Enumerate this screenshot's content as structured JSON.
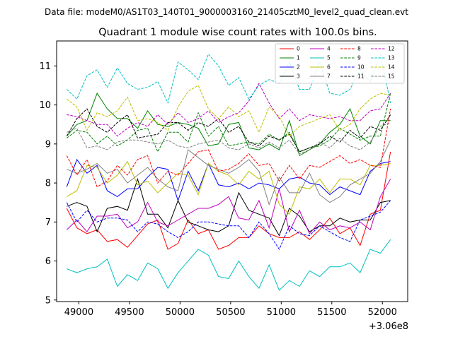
{
  "suptitle": "Data file: modeM0/AS1T03_140T01_9000003160_21405cztM0_level2_quad_clean.evt",
  "chart_data": {
    "type": "line",
    "title": "Quadrant 1 module wise count rates with 100.0s bins.",
    "xlabel": "",
    "ylabel": "",
    "x_offset_label": "+3.06e8",
    "xlim": [
      48780,
      52250
    ],
    "ylim": [
      4.96,
      11.64
    ],
    "xticks": [
      49000,
      49500,
      50000,
      50500,
      51000,
      51500,
      52000
    ],
    "xtick_labels": [
      "49000",
      "49500",
      "50000",
      "50500",
      "51000",
      "51500",
      "52000"
    ],
    "yticks": [
      5,
      6,
      7,
      8,
      9,
      10,
      11
    ],
    "ytick_labels": [
      "5",
      "6",
      "7",
      "8",
      "9",
      "10",
      "11"
    ],
    "x": [
      48880,
      48980,
      49080,
      49180,
      49280,
      49380,
      49480,
      49580,
      49680,
      49780,
      49880,
      49980,
      50080,
      50180,
      50280,
      50380,
      50480,
      50580,
      50680,
      50780,
      50880,
      50980,
      51080,
      51180,
      51280,
      51380,
      51480,
      51580,
      51680,
      51780,
      51880,
      51980,
      52080
    ],
    "legend_loc": "upper right",
    "series": [
      {
        "name": "0",
        "color": "#ff0000",
        "dash": "solid",
        "values": [
          7.35,
          6.85,
          6.7,
          6.8,
          6.5,
          6.55,
          6.35,
          6.65,
          6.95,
          7.05,
          6.3,
          6.45,
          7.05,
          6.7,
          6.8,
          6.3,
          6.4,
          6.6,
          6.6,
          6.9,
          6.7,
          6.6,
          6.6,
          6.75,
          6.55,
          6.8,
          7.1,
          6.7,
          6.85,
          6.4,
          7.2,
          7.3,
          8.8
        ]
      },
      {
        "name": "1",
        "color": "#008000",
        "dash": "solid",
        "values": [
          9.2,
          9.5,
          9.6,
          10.3,
          9.9,
          9.65,
          9.65,
          9.4,
          9.85,
          9.5,
          9.45,
          9.55,
          9.5,
          9.4,
          8.95,
          9.0,
          9.5,
          9.55,
          8.9,
          8.85,
          9.0,
          8.85,
          9.6,
          8.7,
          8.85,
          9.0,
          9.3,
          9.5,
          9.9,
          9.2,
          9.0,
          9.6,
          9.6
        ]
      },
      {
        "name": "2",
        "color": "#0000ff",
        "dash": "solid",
        "values": [
          7.9,
          8.6,
          8.25,
          8.45,
          7.8,
          7.65,
          7.85,
          7.85,
          8.15,
          8.4,
          8.35,
          7.55,
          8.3,
          7.8,
          8.5,
          7.95,
          7.9,
          8.0,
          7.85,
          8.0,
          7.95,
          7.85,
          8.1,
          8.15,
          8.0,
          7.95,
          7.7,
          7.9,
          7.8,
          7.7,
          8.3,
          8.5,
          8.55
        ]
      },
      {
        "name": "3",
        "color": "#000000",
        "dash": "solid",
        "values": [
          7.4,
          7.5,
          7.4,
          6.75,
          7.35,
          7.4,
          7.3,
          8.1,
          7.2,
          7.2,
          6.85,
          7.55,
          7.0,
          6.9,
          6.8,
          6.75,
          6.9,
          7.75,
          7.3,
          7.2,
          7.1,
          6.65,
          7.35,
          7.15,
          6.75,
          6.9,
          6.9,
          7.1,
          7.0,
          7.05,
          7.05,
          7.5,
          7.55
        ]
      },
      {
        "name": "4",
        "color": "#bf00bf",
        "dash": "solid",
        "values": [
          6.8,
          7.05,
          6.75,
          7.15,
          7.15,
          7.2,
          6.85,
          7.0,
          7.5,
          7.0,
          6.9,
          7.05,
          7.2,
          7.35,
          7.35,
          7.45,
          7.65,
          7.1,
          7.05,
          7.55,
          6.85,
          7.85,
          6.75,
          7.3,
          6.7,
          7.0,
          6.8,
          6.9,
          6.85,
          7.0,
          6.8,
          7.65,
          8.1
        ]
      },
      {
        "name": "5",
        "color": "#00bfbf",
        "dash": "solid",
        "values": [
          5.8,
          5.7,
          5.8,
          5.85,
          6.05,
          5.35,
          5.65,
          5.5,
          5.95,
          5.8,
          5.3,
          5.7,
          6.0,
          6.3,
          6.15,
          5.6,
          5.55,
          6.0,
          5.6,
          5.3,
          5.9,
          5.25,
          5.5,
          5.35,
          5.75,
          5.6,
          5.85,
          5.85,
          5.95,
          5.7,
          6.3,
          6.2,
          6.55
        ]
      },
      {
        "name": "6",
        "color": "#bfbf00",
        "dash": "solid",
        "values": [
          7.65,
          7.8,
          8.45,
          8.4,
          8.0,
          8.2,
          8.55,
          7.95,
          8.05,
          7.75,
          8.0,
          8.25,
          8.2,
          7.7,
          8.5,
          8.3,
          8.2,
          7.95,
          8.3,
          8.1,
          8.3,
          7.45,
          7.2,
          7.9,
          7.85,
          8.1,
          7.75,
          8.1,
          8.1,
          7.95,
          8.45,
          8.45,
          8.5
        ]
      },
      {
        "name": "7",
        "color": "#808080",
        "dash": "solid",
        "values": [
          8.35,
          8.25,
          8.35,
          8.5,
          8.25,
          8.35,
          8.0,
          8.2,
          8.4,
          8.1,
          7.9,
          7.8,
          8.85,
          8.65,
          8.45,
          8.35,
          8.25,
          8.4,
          8.6,
          8.3,
          7.45,
          8.15,
          7.75,
          7.75,
          8.25,
          7.7,
          7.5,
          7.65,
          7.95,
          8.1,
          8.25,
          8.55,
          9.1
        ]
      },
      {
        "name": "8",
        "color": "#ff0000",
        "dash": "dash",
        "values": [
          8.7,
          8.2,
          8.6,
          7.9,
          8.05,
          8.45,
          8.2,
          8.6,
          8.7,
          8.0,
          8.3,
          8.2,
          8.5,
          8.8,
          8.85,
          8.3,
          8.35,
          8.5,
          8.75,
          8.45,
          8.5,
          8.05,
          8.45,
          8.1,
          8.45,
          8.4,
          8.55,
          8.7,
          8.5,
          8.6,
          8.45,
          8.4,
          9.9
        ]
      },
      {
        "name": "9",
        "color": "#008000",
        "dash": "dash",
        "values": [
          9.15,
          9.35,
          9.3,
          9.0,
          9.2,
          8.95,
          9.1,
          9.35,
          9.4,
          8.8,
          9.3,
          9.3,
          9.05,
          9.8,
          9.2,
          9.45,
          8.95,
          9.0,
          9.05,
          9.0,
          9.25,
          9.1,
          9.3,
          8.8,
          8.9,
          8.95,
          9.1,
          9.4,
          9.25,
          9.1,
          9.2,
          9.2,
          10.3
        ]
      },
      {
        "name": "10",
        "color": "#0000ff",
        "dash": "dash",
        "values": [
          7.5,
          7.0,
          7.3,
          7.0,
          7.1,
          7.1,
          7.05,
          6.75,
          7.0,
          6.95,
          6.75,
          6.6,
          6.75,
          7.0,
          7.0,
          6.95,
          6.9,
          6.9,
          6.6,
          7.0,
          6.7,
          6.3,
          6.9,
          6.7,
          6.65,
          6.9,
          6.75,
          6.6,
          6.5,
          7.05,
          7.15,
          7.25,
          7.55
        ]
      },
      {
        "name": "11",
        "color": "#000000",
        "dash": "dash",
        "values": [
          9.2,
          9.65,
          9.9,
          9.45,
          9.3,
          9.55,
          9.75,
          9.15,
          9.2,
          9.25,
          9.55,
          9.55,
          9.35,
          9.55,
          9.45,
          9.65,
          9.3,
          9.45,
          9.05,
          8.95,
          9.2,
          9.1,
          9.25,
          8.8,
          8.9,
          9.0,
          9.2,
          9.05,
          9.35,
          9.15,
          9.45,
          9.35,
          9.75
        ]
      },
      {
        "name": "12",
        "color": "#bf00bf",
        "dash": "dash",
        "values": [
          9.75,
          9.7,
          9.6,
          9.5,
          9.5,
          9.2,
          9.4,
          9.55,
          9.45,
          9.75,
          9.5,
          9.8,
          9.55,
          9.65,
          9.85,
          9.55,
          9.7,
          9.8,
          10.1,
          10.55,
          10.05,
          9.65,
          9.9,
          9.6,
          9.75,
          9.7,
          9.65,
          9.7,
          9.6,
          9.6,
          9.85,
          9.9,
          10.3
        ]
      },
      {
        "name": "13",
        "color": "#00bfbf",
        "dash": "dash",
        "values": [
          10.4,
          10.15,
          10.75,
          10.9,
          10.45,
          10.95,
          10.55,
          10.4,
          10.45,
          10.6,
          10.05,
          11.1,
          10.9,
          10.65,
          11.3,
          11.0,
          10.5,
          10.7,
          10.15,
          10.5,
          10.65,
          10.55,
          11.1,
          10.4,
          10.4,
          11.1,
          10.3,
          10.25,
          10.4,
          10.9,
          10.6,
          11.3,
          10.05
        ]
      },
      {
        "name": "14",
        "color": "#bfbf00",
        "dash": "dash",
        "values": [
          10.15,
          9.95,
          9.35,
          9.8,
          9.7,
          9.85,
          10.2,
          9.6,
          9.65,
          9.55,
          9.35,
          9.95,
          10.35,
          10.5,
          9.9,
          9.65,
          9.95,
          9.7,
          9.85,
          9.3,
          9.95,
          9.7,
          9.2,
          9.45,
          9.55,
          9.65,
          9.75,
          9.35,
          9.5,
          9.9,
          10.15,
          10.3,
          10.25
        ]
      },
      {
        "name": "15",
        "color": "#808080",
        "dash": "dash",
        "values": [
          9.3,
          9.4,
          8.9,
          8.95,
          8.85,
          9.05,
          9.1,
          9.1,
          9.05,
          9.0,
          9.1,
          8.95,
          8.9,
          9.0,
          9.05,
          9.1,
          8.9,
          8.85,
          9.0,
          8.9,
          9.05,
          8.9,
          9.1,
          8.75,
          8.85,
          9.05,
          8.9,
          9.15,
          8.95,
          8.85,
          9.05,
          9.45,
          9.55
        ]
      }
    ]
  }
}
